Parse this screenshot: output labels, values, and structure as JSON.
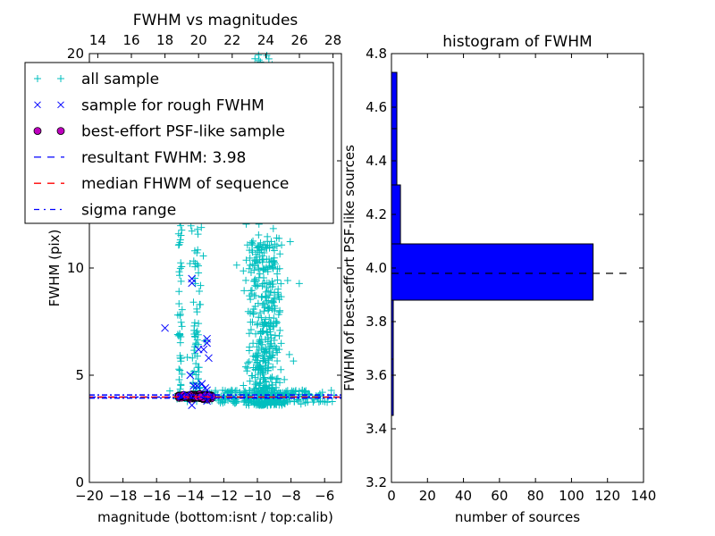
{
  "chart_data": [
    {
      "type": "scatter",
      "title": "FWHM vs magnitudes",
      "xlabel": "magnitude (bottom:isnt / top:calib)",
      "ylabel": "FWHM (pix)",
      "xlim": [
        -20,
        -5
      ],
      "ylim": [
        0,
        20
      ],
      "xticks": [
        "−20",
        "−18",
        "−16",
        "−14",
        "−12",
        "−10",
        "−8",
        "−6"
      ],
      "xtick_values": [
        -20,
        -18,
        -16,
        -14,
        -12,
        -10,
        -8,
        -6
      ],
      "yticks": [
        "0",
        "5",
        "10",
        "15",
        "20"
      ],
      "ytick_values": [
        0,
        5,
        10,
        15,
        20
      ],
      "top_xticks": [
        "14",
        "16",
        "18",
        "20",
        "22",
        "24",
        "26",
        "28"
      ],
      "top_xtick_values": [
        14,
        16,
        18,
        20,
        22,
        24,
        26,
        28
      ],
      "top_xlim": [
        13.5,
        28.5
      ],
      "legend": {
        "position": "upper-left",
        "entries": [
          {
            "label": "all sample",
            "marker": "plus",
            "color": "#00bfbf"
          },
          {
            "label": "sample for rough FWHM",
            "marker": "x",
            "color": "#0000ff"
          },
          {
            "label": "best-effort PSF-like sample",
            "marker": "circle",
            "color": "#bf00bf"
          },
          {
            "label": "resultant FWHM: 3.98",
            "marker": "dashed",
            "color": "#0000ff"
          },
          {
            "label": "median FHWM of sequence",
            "marker": "dashed",
            "color": "#ff0000"
          },
          {
            "label": "sigma range",
            "marker": "dashdot",
            "color": "#0000ff"
          }
        ]
      },
      "series": [
        {
          "name": "all sample",
          "color": "#00bfbf",
          "clusters": [
            {
              "x_center": -9.5,
              "x_spread": 1.1,
              "y_min": 3.6,
              "y_max": 11.5,
              "count": 420
            },
            {
              "x_center": -9.8,
              "x_spread": 1.4,
              "y_min": 8.0,
              "y_max": 20.0,
              "count": 120
            },
            {
              "x_center": -14.6,
              "x_spread": 0.15,
              "y_min": 3.9,
              "y_max": 19.5,
              "count": 70
            },
            {
              "x_center": -13.6,
              "x_spread": 0.4,
              "y_min": 3.9,
              "y_max": 12.0,
              "count": 70
            },
            {
              "x_center": -10.0,
              "x_spread": 4.5,
              "y_min": 3.7,
              "y_max": 4.3,
              "count": 250
            }
          ]
        },
        {
          "name": "sample for rough FWHM",
          "color": "#0000ff",
          "points": [
            [
              -15.5,
              7.2
            ],
            [
              -13.9,
              9.3
            ],
            [
              -13.9,
              9.5
            ],
            [
              -13.0,
              6.7
            ],
            [
              -13.0,
              6.5
            ],
            [
              -13.2,
              6.2
            ],
            [
              -12.9,
              5.8
            ],
            [
              -13.5,
              6.2
            ],
            [
              -14.0,
              5.0
            ],
            [
              -13.8,
              4.5
            ],
            [
              -13.6,
              4.5
            ],
            [
              -13.3,
              4.6
            ],
            [
              -13.1,
              4.4
            ],
            [
              -13.0,
              4.3
            ],
            [
              -14.2,
              4.1
            ],
            [
              -14.5,
              4.0
            ],
            [
              -13.9,
              3.6
            ],
            [
              -13.0,
              3.8
            ],
            [
              -12.8,
              4.0
            ]
          ]
        },
        {
          "name": "best-effort PSF-like sample",
          "color": "#bf00bf",
          "x_range": [
            -14.7,
            -12.7
          ],
          "y": 4.0,
          "count": 112
        }
      ],
      "lines": [
        {
          "name": "resultant FWHM",
          "y": 3.98,
          "color": "#0000ff",
          "style": "dashed"
        },
        {
          "name": "median FHWM of sequence",
          "y": 3.98,
          "color": "#ff0000",
          "style": "dashed"
        },
        {
          "name": "sigma range",
          "y": [
            3.93,
            4.08
          ],
          "color": "#0000ff",
          "style": "dashdot"
        }
      ]
    },
    {
      "type": "bar",
      "orientation": "horizontal",
      "title": "histogram of FWHM",
      "xlabel": "number of sources",
      "ylabel": "FWHM of best-effort PSF-like sources",
      "xlim": [
        0,
        140
      ],
      "ylim": [
        3.2,
        4.8
      ],
      "xticks": [
        "0",
        "20",
        "40",
        "60",
        "80",
        "100",
        "120",
        "140"
      ],
      "xtick_values": [
        0,
        20,
        40,
        60,
        80,
        100,
        120,
        140
      ],
      "yticks": [
        "3.2",
        "3.4",
        "3.6",
        "3.8",
        "4.0",
        "4.2",
        "4.4",
        "4.6",
        "4.8"
      ],
      "ytick_values": [
        3.2,
        3.4,
        3.6,
        3.8,
        4.0,
        4.2,
        4.4,
        4.6,
        4.8
      ],
      "bin_edges": [
        3.45,
        3.66,
        3.88,
        4.09,
        4.31,
        4.52,
        4.73
      ],
      "counts": [
        1,
        1,
        112,
        5,
        3,
        3
      ],
      "bar_color": "#0000ff",
      "reference_line": {
        "y": 3.98,
        "x_range": [
          0,
          134
        ],
        "color": "#000000",
        "style": "dashed"
      }
    }
  ]
}
